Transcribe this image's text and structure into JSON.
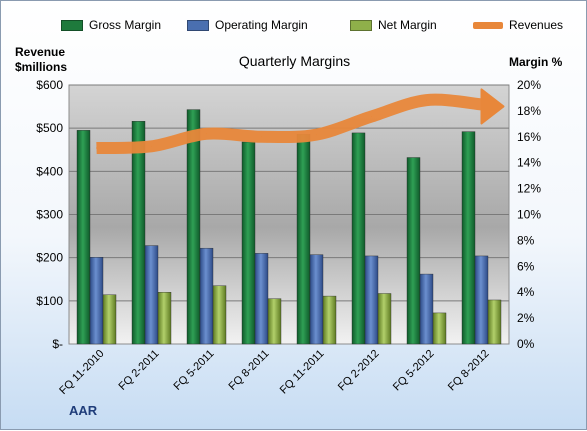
{
  "legend": {
    "items": [
      {
        "label": "Gross Margin",
        "color": "#1e7a3c"
      },
      {
        "label": "Operating Margin",
        "color": "#4a6fb0"
      },
      {
        "label": "Net Margin",
        "color": "#8fb04a"
      },
      {
        "label": "Revenues",
        "color": "#e8873a"
      }
    ]
  },
  "chart_data": {
    "type": "bar",
    "title": "Quarterly Margins",
    "company": "AAR",
    "y_left_title": [
      "Revenue",
      "$millions"
    ],
    "y_right_title": "Margin %",
    "categories": [
      "FQ 11-2010",
      "FQ 2-2011",
      "FQ 5-2011",
      "FQ 8-2011",
      "FQ 11-2011",
      "FQ 2-2012",
      "FQ 5-2012",
      "FQ 8-2012"
    ],
    "series": [
      {
        "name": "Gross Margin",
        "axis": "right",
        "values": [
          16.5,
          17.2,
          18.1,
          15.6,
          16.2,
          16.3,
          14.4,
          16.4
        ]
      },
      {
        "name": "Operating Margin",
        "axis": "right",
        "values": [
          6.7,
          7.6,
          7.4,
          7.0,
          6.9,
          6.8,
          5.4,
          6.8
        ]
      },
      {
        "name": "Net Margin",
        "axis": "right",
        "values": [
          3.8,
          4.0,
          4.5,
          3.5,
          3.7,
          3.9,
          2.4,
          3.4
        ]
      },
      {
        "name": "Revenues",
        "axis": "left",
        "type": "line",
        "values": [
          454,
          458,
          487,
          480,
          485,
          527,
          565,
          555
        ]
      }
    ],
    "y_left": {
      "min": 0,
      "max": 600,
      "ticks": [
        0,
        100,
        200,
        300,
        400,
        500,
        600
      ],
      "tick_labels": [
        "$-",
        "$100",
        "$200",
        "$300",
        "$400",
        "$500",
        "$600"
      ]
    },
    "y_right": {
      "min": 0,
      "max": 20,
      "ticks": [
        0,
        2,
        4,
        6,
        8,
        10,
        12,
        14,
        16,
        18,
        20
      ],
      "tick_labels": [
        "0%",
        "2%",
        "4%",
        "6%",
        "8%",
        "10%",
        "12%",
        "14%",
        "16%",
        "18%",
        "20%"
      ]
    },
    "grid": true,
    "legend_position": "top"
  }
}
